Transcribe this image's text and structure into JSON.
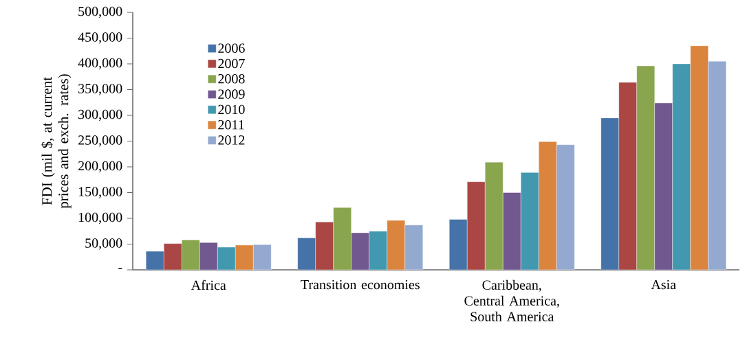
{
  "chart_data": {
    "type": "bar",
    "ylabel": "FDI (mil $, at current prices and exch. rates)",
    "categories": [
      "Africa",
      "Transition economies",
      "Caribbean, Central America, South America",
      "Asia"
    ],
    "series": [
      {
        "name": "2006",
        "color": "#4572a7",
        "values": [
          36000,
          62000,
          98000,
          295000
        ]
      },
      {
        "name": "2007",
        "color": "#aa4643",
        "values": [
          51000,
          93000,
          171000,
          364000
        ]
      },
      {
        "name": "2008",
        "color": "#89a54e",
        "values": [
          58000,
          121000,
          209000,
          396000
        ]
      },
      {
        "name": "2009",
        "color": "#71588f",
        "values": [
          53000,
          72000,
          150000,
          324000
        ]
      },
      {
        "name": "2010",
        "color": "#4198af",
        "values": [
          44000,
          75000,
          189000,
          400000
        ]
      },
      {
        "name": "2011",
        "color": "#db843d",
        "values": [
          48000,
          96000,
          249000,
          435000
        ]
      },
      {
        "name": "2012",
        "color": "#93a9cf",
        "values": [
          49000,
          87000,
          243000,
          405000
        ]
      }
    ],
    "ylim": [
      0,
      500000
    ],
    "yticks": [
      {
        "value": 0,
        "label": "-"
      },
      {
        "value": 50000,
        "label": "50,000"
      },
      {
        "value": 100000,
        "label": "100,000"
      },
      {
        "value": 150000,
        "label": "150,000"
      },
      {
        "value": 200000,
        "label": "200,000"
      },
      {
        "value": 250000,
        "label": "250,000"
      },
      {
        "value": 300000,
        "label": "300,000"
      },
      {
        "value": 350000,
        "label": "350,000"
      },
      {
        "value": 400000,
        "label": "400,000"
      },
      {
        "value": 450000,
        "label": "450,000"
      },
      {
        "value": 500000,
        "label": "500,000"
      }
    ],
    "legend": "top left",
    "grid": false
  }
}
